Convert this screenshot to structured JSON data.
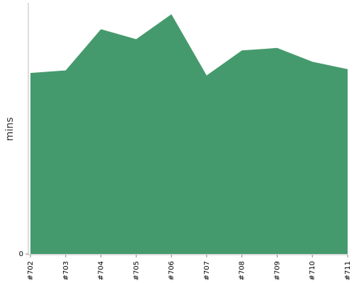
{
  "chart_data": {
    "type": "area",
    "x": [
      "#702",
      "#703",
      "#704",
      "#705",
      "#706",
      "#707",
      "#708",
      "#709",
      "#710",
      "#711"
    ],
    "series": [
      {
        "values": [
          72.5,
          73.5,
          90.0,
          86.0,
          96.0,
          71.5,
          81.5,
          82.5,
          77.0,
          74.0
        ],
        "color": "#459a6d"
      }
    ],
    "ylabel": "mins",
    "xlabel": "",
    "ylim": [
      0,
      100
    ],
    "y_ticks": [
      0
    ],
    "grid": false,
    "legend": "none",
    "colors": {
      "area": "#459a6d",
      "axis": "#bbbbbb",
      "tick": "#888888"
    }
  }
}
